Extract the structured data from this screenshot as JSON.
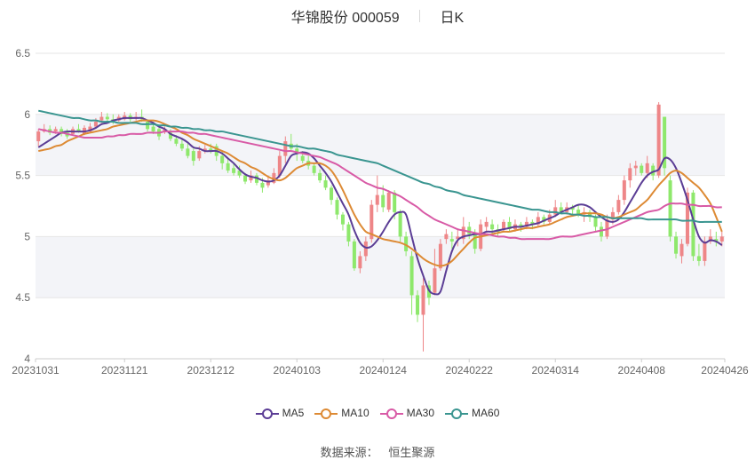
{
  "header": {
    "stock_name": "华锦股份 000059",
    "period": "日K"
  },
  "source": {
    "label": "数据来源：",
    "provider": "恒生聚源"
  },
  "colors": {
    "up": "#ee8688",
    "down": "#8ee86c",
    "ma5": "#5b3d95",
    "ma10": "#dd8a34",
    "ma30": "#d85aa6",
    "ma60": "#3a9590"
  },
  "chart_data": {
    "type": "candlestick",
    "ylim": [
      4,
      6.5
    ],
    "yticks": [
      "4",
      "4.5",
      "5",
      "5.5",
      "6",
      "6.5"
    ],
    "grid": true,
    "legend_position": "bottom",
    "xticks": [
      {
        "label": "20231031",
        "index": 0
      },
      {
        "label": "20231121",
        "index": 15
      },
      {
        "label": "20231212",
        "index": 30
      },
      {
        "label": "20240103",
        "index": 45
      },
      {
        "label": "20240124",
        "index": 60
      },
      {
        "label": "20240222",
        "index": 75
      },
      {
        "label": "20240314",
        "index": 90
      },
      {
        "label": "20240408",
        "index": 105
      },
      {
        "label": "20240426",
        "index": 119
      }
    ],
    "candles": [
      [
        5.78,
        5.86,
        5.74,
        5.88
      ],
      [
        5.86,
        5.88,
        5.85,
        5.92
      ],
      [
        5.88,
        5.85,
        5.83,
        5.91
      ],
      [
        5.86,
        5.88,
        5.84,
        5.9
      ],
      [
        5.88,
        5.84,
        5.82,
        5.9
      ],
      [
        5.86,
        5.82,
        5.8,
        5.88
      ],
      [
        5.84,
        5.88,
        5.83,
        5.9
      ],
      [
        5.88,
        5.86,
        5.85,
        5.92
      ],
      [
        5.84,
        5.89,
        5.83,
        5.91
      ],
      [
        5.86,
        5.9,
        5.85,
        5.93
      ],
      [
        5.9,
        5.94,
        5.88,
        5.97
      ],
      [
        5.95,
        5.98,
        5.93,
        6.02
      ],
      [
        5.98,
        5.96,
        5.94,
        6.01
      ],
      [
        5.96,
        5.95,
        5.92,
        6.0
      ],
      [
        5.95,
        5.98,
        5.94,
        6.0
      ],
      [
        5.96,
        5.99,
        5.95,
        6.02
      ],
      [
        5.99,
        5.96,
        5.94,
        6.01
      ],
      [
        5.97,
        5.98,
        5.95,
        6.02
      ],
      [
        5.98,
        5.96,
        5.94,
        6.04
      ],
      [
        5.94,
        5.88,
        5.86,
        5.96
      ],
      [
        5.9,
        5.86,
        5.84,
        5.94
      ],
      [
        5.88,
        5.82,
        5.79,
        5.9
      ],
      [
        5.86,
        5.88,
        5.84,
        5.9
      ],
      [
        5.85,
        5.8,
        5.78,
        5.88
      ],
      [
        5.8,
        5.76,
        5.74,
        5.83
      ],
      [
        5.76,
        5.72,
        5.7,
        5.8
      ],
      [
        5.72,
        5.66,
        5.64,
        5.76
      ],
      [
        5.7,
        5.62,
        5.58,
        5.72
      ],
      [
        5.64,
        5.7,
        5.62,
        5.74
      ],
      [
        5.7,
        5.72,
        5.68,
        5.75
      ],
      [
        5.72,
        5.7,
        5.68,
        5.76
      ],
      [
        5.74,
        5.66,
        5.62,
        5.76
      ],
      [
        5.66,
        5.6,
        5.55,
        5.7
      ],
      [
        5.6,
        5.54,
        5.52,
        5.64
      ],
      [
        5.56,
        5.52,
        5.5,
        5.6
      ],
      [
        5.54,
        5.5,
        5.48,
        5.58
      ],
      [
        5.5,
        5.45,
        5.43,
        5.52
      ],
      [
        5.46,
        5.5,
        5.44,
        5.54
      ],
      [
        5.5,
        5.44,
        5.42,
        5.52
      ],
      [
        5.44,
        5.4,
        5.36,
        5.48
      ],
      [
        5.42,
        5.46,
        5.4,
        5.5
      ],
      [
        5.44,
        5.52,
        5.43,
        5.56
      ],
      [
        5.5,
        5.66,
        5.48,
        5.7
      ],
      [
        5.66,
        5.78,
        5.6,
        5.82
      ],
      [
        5.76,
        5.72,
        5.7,
        5.84
      ],
      [
        5.72,
        5.68,
        5.62,
        5.76
      ],
      [
        5.66,
        5.62,
        5.6,
        5.7
      ],
      [
        5.62,
        5.58,
        5.55,
        5.66
      ],
      [
        5.58,
        5.52,
        5.5,
        5.6
      ],
      [
        5.52,
        5.46,
        5.44,
        5.55
      ],
      [
        5.46,
        5.4,
        5.38,
        5.5
      ],
      [
        5.4,
        5.3,
        5.26,
        5.42
      ],
      [
        5.3,
        5.18,
        5.14,
        5.32
      ],
      [
        5.18,
        5.1,
        5.05,
        5.2
      ],
      [
        5.1,
        4.96,
        4.92,
        5.12
      ],
      [
        4.96,
        4.74,
        4.72,
        4.98
      ],
      [
        4.74,
        4.84,
        4.7,
        4.88
      ],
      [
        4.84,
        4.96,
        4.8,
        5.0
      ],
      [
        4.98,
        5.26,
        4.95,
        5.3
      ],
      [
        5.26,
        5.34,
        5.2,
        5.5
      ],
      [
        5.34,
        5.24,
        5.2,
        5.42
      ],
      [
        5.22,
        5.36,
        5.2,
        5.38
      ],
      [
        5.36,
        5.2,
        5.14,
        5.38
      ],
      [
        5.2,
        5.0,
        4.96,
        5.22
      ],
      [
        5.0,
        4.88,
        4.84,
        5.04
      ],
      [
        4.84,
        4.52,
        4.36,
        4.88
      ],
      [
        4.52,
        4.36,
        4.3,
        4.56
      ],
      [
        4.36,
        4.6,
        4.06,
        4.66
      ],
      [
        4.6,
        4.5,
        4.44,
        4.64
      ],
      [
        4.54,
        4.74,
        4.52,
        4.9
      ],
      [
        4.74,
        4.94,
        4.72,
        4.98
      ],
      [
        4.98,
        5.02,
        4.94,
        5.06
      ],
      [
        4.98,
        4.96,
        4.9,
        5.04
      ],
      [
        4.98,
        5.0,
        4.92,
        5.06
      ],
      [
        4.98,
        5.08,
        4.94,
        5.16
      ],
      [
        5.08,
        5.02,
        4.98,
        5.12
      ],
      [
        5.02,
        4.9,
        4.86,
        5.06
      ],
      [
        4.9,
        5.1,
        4.88,
        5.14
      ],
      [
        5.08,
        5.12,
        5.04,
        5.16
      ],
      [
        5.1,
        5.06,
        5.02,
        5.14
      ],
      [
        5.06,
        5.04,
        5.0,
        5.1
      ],
      [
        5.06,
        5.12,
        5.04,
        5.14
      ],
      [
        5.12,
        5.06,
        5.04,
        5.16
      ],
      [
        5.06,
        5.1,
        5.04,
        5.14
      ],
      [
        5.1,
        5.08,
        5.04,
        5.12
      ],
      [
        5.08,
        5.12,
        5.06,
        5.16
      ],
      [
        5.12,
        5.1,
        5.06,
        5.14
      ],
      [
        5.1,
        5.16,
        5.08,
        5.2
      ],
      [
        5.16,
        5.12,
        5.1,
        5.18
      ],
      [
        5.12,
        5.18,
        5.1,
        5.22
      ],
      [
        5.18,
        5.24,
        5.16,
        5.3
      ],
      [
        5.24,
        5.2,
        5.18,
        5.28
      ],
      [
        5.2,
        5.24,
        5.18,
        5.28
      ],
      [
        5.24,
        5.22,
        5.18,
        5.26
      ],
      [
        5.22,
        5.18,
        5.16,
        5.26
      ],
      [
        5.18,
        5.2,
        5.12,
        5.24
      ],
      [
        5.2,
        5.16,
        5.12,
        5.22
      ],
      [
        5.16,
        5.08,
        5.04,
        5.18
      ],
      [
        5.08,
        5.0,
        4.96,
        5.12
      ],
      [
        5.0,
        5.14,
        4.98,
        5.18
      ],
      [
        5.14,
        5.2,
        5.1,
        5.24
      ],
      [
        5.2,
        5.3,
        5.18,
        5.34
      ],
      [
        5.3,
        5.46,
        5.26,
        5.5
      ],
      [
        5.46,
        5.56,
        5.4,
        5.6
      ],
      [
        5.56,
        5.58,
        5.5,
        5.62
      ],
      [
        5.58,
        5.52,
        5.5,
        5.6
      ],
      [
        5.52,
        5.6,
        5.48,
        5.66
      ],
      [
        5.58,
        5.5,
        5.46,
        5.6
      ],
      [
        5.5,
        6.08,
        5.48,
        6.1
      ],
      [
        5.98,
        5.56,
        5.5,
        5.98
      ],
      [
        5.46,
        5.0,
        4.96,
        5.5
      ],
      [
        5.0,
        4.86,
        4.82,
        5.04
      ],
      [
        4.84,
        4.94,
        4.78,
        4.98
      ],
      [
        4.94,
        5.36,
        4.92,
        5.4
      ],
      [
        5.36,
        4.84,
        4.8,
        5.38
      ],
      [
        4.84,
        4.8,
        4.76,
        4.94
      ],
      [
        4.8,
        4.96,
        4.76,
        5.0
      ],
      [
        4.96,
        5.0,
        4.94,
        5.06
      ],
      [
        4.98,
        4.96,
        4.92,
        5.04
      ],
      [
        4.96,
        5.0,
        4.92,
        5.04
      ]
    ],
    "series": [
      {
        "name": "MA5",
        "key": "ma5",
        "values": [
          5.73,
          5.76,
          5.79,
          5.82,
          5.85,
          5.86,
          5.86,
          5.86,
          5.86,
          5.87,
          5.89,
          5.92,
          5.93,
          5.95,
          5.96,
          5.97,
          5.97,
          5.97,
          5.97,
          5.95,
          5.93,
          5.9,
          5.88,
          5.84,
          5.82,
          5.8,
          5.77,
          5.73,
          5.72,
          5.7,
          5.7,
          5.7,
          5.68,
          5.64,
          5.6,
          5.55,
          5.51,
          5.49,
          5.48,
          5.46,
          5.45,
          5.46,
          5.5,
          5.58,
          5.66,
          5.68,
          5.69,
          5.68,
          5.64,
          5.58,
          5.52,
          5.45,
          5.36,
          5.27,
          5.18,
          5.05,
          4.95,
          4.91,
          4.92,
          4.97,
          5.04,
          5.12,
          5.18,
          5.2,
          5.18,
          5.0,
          4.82,
          4.68,
          4.56,
          4.53,
          4.55,
          4.72,
          4.88,
          4.97,
          5.0,
          5.01,
          5.02,
          5.02,
          5.04,
          5.04,
          5.05,
          5.06,
          5.07,
          5.08,
          5.08,
          5.09,
          5.1,
          5.11,
          5.13,
          5.15,
          5.17,
          5.2,
          5.22,
          5.24,
          5.26,
          5.26,
          5.24,
          5.2,
          5.16,
          5.13,
          5.12,
          5.14,
          5.2,
          5.28,
          5.36,
          5.44,
          5.5,
          5.53,
          5.55,
          5.64,
          5.63,
          5.56,
          5.44,
          5.3,
          5.14,
          5.0,
          4.95,
          4.97,
          4.96,
          4.93
        ]
      },
      {
        "name": "MA10",
        "key": "ma10",
        "values": [
          5.7,
          5.71,
          5.72,
          5.74,
          5.75,
          5.78,
          5.8,
          5.82,
          5.84,
          5.85,
          5.86,
          5.87,
          5.88,
          5.9,
          5.91,
          5.92,
          5.93,
          5.94,
          5.95,
          5.95,
          5.95,
          5.94,
          5.92,
          5.9,
          5.88,
          5.85,
          5.83,
          5.8,
          5.78,
          5.76,
          5.74,
          5.72,
          5.7,
          5.68,
          5.65,
          5.62,
          5.6,
          5.57,
          5.55,
          5.52,
          5.49,
          5.47,
          5.46,
          5.48,
          5.52,
          5.56,
          5.58,
          5.6,
          5.6,
          5.6,
          5.58,
          5.54,
          5.47,
          5.38,
          5.28,
          5.18,
          5.1,
          5.04,
          5.02,
          5.0,
          4.98,
          4.97,
          4.96,
          4.95,
          4.93,
          4.9,
          4.86,
          4.82,
          4.79,
          4.77,
          4.76,
          4.77,
          4.8,
          4.85,
          4.9,
          4.95,
          4.99,
          5.0,
          5.01,
          5.02,
          5.03,
          5.04,
          5.04,
          5.05,
          5.06,
          5.07,
          5.07,
          5.08,
          5.09,
          5.1,
          5.12,
          5.14,
          5.16,
          5.17,
          5.18,
          5.19,
          5.19,
          5.19,
          5.18,
          5.16,
          5.15,
          5.16,
          5.18,
          5.2,
          5.22,
          5.26,
          5.3,
          5.36,
          5.42,
          5.47,
          5.52,
          5.54,
          5.52,
          5.48,
          5.44,
          5.4,
          5.34,
          5.27,
          5.16,
          5.04
        ]
      },
      {
        "name": "MA30",
        "key": "ma30",
        "values": [
          5.88,
          5.87,
          5.86,
          5.85,
          5.85,
          5.84,
          5.83,
          5.82,
          5.81,
          5.81,
          5.81,
          5.81,
          5.82,
          5.82,
          5.83,
          5.83,
          5.84,
          5.84,
          5.84,
          5.85,
          5.85,
          5.85,
          5.86,
          5.86,
          5.86,
          5.86,
          5.85,
          5.85,
          5.84,
          5.84,
          5.83,
          5.82,
          5.81,
          5.8,
          5.79,
          5.78,
          5.77,
          5.76,
          5.75,
          5.74,
          5.73,
          5.72,
          5.71,
          5.7,
          5.7,
          5.69,
          5.68,
          5.67,
          5.66,
          5.65,
          5.63,
          5.61,
          5.59,
          5.56,
          5.53,
          5.5,
          5.47,
          5.44,
          5.42,
          5.4,
          5.39,
          5.37,
          5.35,
          5.33,
          5.3,
          5.27,
          5.24,
          5.2,
          5.17,
          5.14,
          5.12,
          5.1,
          5.08,
          5.06,
          5.05,
          5.04,
          5.03,
          5.02,
          5.02,
          5.01,
          5.0,
          5.0,
          4.99,
          4.99,
          4.98,
          4.98,
          4.98,
          4.98,
          4.98,
          4.98,
          4.99,
          5.0,
          5.0,
          5.0,
          5.01,
          5.02,
          5.03,
          5.04,
          5.05,
          5.06,
          5.08,
          5.1,
          5.12,
          5.14,
          5.16,
          5.18,
          5.2,
          5.21,
          5.22,
          5.25,
          5.27,
          5.27,
          5.27,
          5.26,
          5.26,
          5.25,
          5.25,
          5.25,
          5.24,
          5.24
        ]
      },
      {
        "name": "MA60",
        "key": "ma60",
        "values": [
          6.03,
          6.02,
          6.01,
          6.0,
          5.99,
          5.98,
          5.97,
          5.97,
          5.96,
          5.95,
          5.95,
          5.94,
          5.94,
          5.94,
          5.93,
          5.93,
          5.93,
          5.93,
          5.92,
          5.92,
          5.92,
          5.91,
          5.91,
          5.9,
          5.9,
          5.89,
          5.89,
          5.88,
          5.88,
          5.87,
          5.87,
          5.86,
          5.86,
          5.85,
          5.84,
          5.83,
          5.82,
          5.81,
          5.8,
          5.79,
          5.78,
          5.77,
          5.76,
          5.75,
          5.74,
          5.74,
          5.73,
          5.72,
          5.72,
          5.71,
          5.7,
          5.69,
          5.67,
          5.66,
          5.65,
          5.64,
          5.63,
          5.62,
          5.61,
          5.6,
          5.58,
          5.56,
          5.54,
          5.52,
          5.5,
          5.48,
          5.46,
          5.44,
          5.43,
          5.41,
          5.4,
          5.38,
          5.37,
          5.36,
          5.34,
          5.33,
          5.32,
          5.31,
          5.3,
          5.29,
          5.28,
          5.27,
          5.26,
          5.25,
          5.24,
          5.23,
          5.22,
          5.22,
          5.21,
          5.2,
          5.2,
          5.19,
          5.19,
          5.18,
          5.18,
          5.17,
          5.17,
          5.16,
          5.16,
          5.16,
          5.15,
          5.15,
          5.15,
          5.15,
          5.15,
          5.15,
          5.14,
          5.14,
          5.14,
          5.14,
          5.14,
          5.14,
          5.13,
          5.13,
          5.13,
          5.12,
          5.12,
          5.12,
          5.12,
          5.12
        ]
      }
    ]
  }
}
